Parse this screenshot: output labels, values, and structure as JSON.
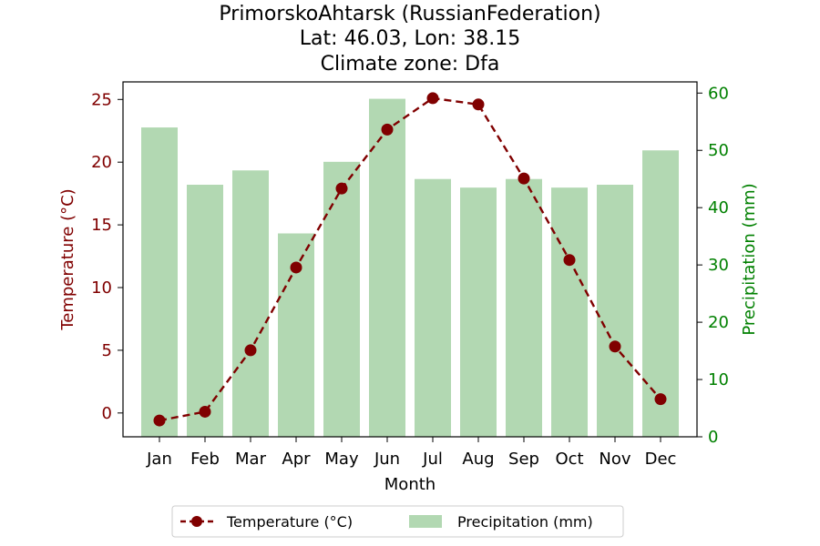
{
  "title": {
    "line1": "PrimorskoAhtarsk (RussianFederation)",
    "line2": "Lat: 46.03, Lon: 38.15",
    "line3": "Climate zone: Dfa"
  },
  "colors": {
    "temperature": "#800000",
    "temperature_axis": "#800000",
    "precipitation_bar": "#b2d8b2",
    "precipitation_axis": "#008000"
  },
  "legend": {
    "temperature": "Temperature (°C)",
    "precipitation": "Precipitation (mm)"
  },
  "chart_data": {
    "type": "bar",
    "categories": [
      "Jan",
      "Feb",
      "Mar",
      "Apr",
      "May",
      "Jun",
      "Jul",
      "Aug",
      "Sep",
      "Oct",
      "Nov",
      "Dec"
    ],
    "xlabel": "Month",
    "series": [
      {
        "name": "Temperature (°C)",
        "type": "line",
        "axis": "left",
        "values": [
          -0.6,
          0.1,
          5.0,
          11.6,
          17.9,
          22.6,
          25.1,
          24.6,
          18.7,
          12.2,
          5.3,
          1.1
        ]
      },
      {
        "name": "Precipitation (mm)",
        "type": "bar",
        "axis": "right",
        "values": [
          54,
          44,
          46.5,
          35.5,
          48,
          59,
          45,
          43.5,
          45,
          43.5,
          44,
          50
        ]
      }
    ],
    "y_left": {
      "label": "Temperature (°C)",
      "ylim": [
        -1.9,
        26.4
      ],
      "ticks": [
        0,
        5,
        10,
        15,
        20,
        25
      ]
    },
    "y_right": {
      "label": "Precipitation (mm)",
      "ylim": [
        0,
        61.95
      ],
      "ticks": [
        0,
        10,
        20,
        30,
        40,
        50,
        60
      ]
    },
    "legend_position": "bottom-center"
  }
}
